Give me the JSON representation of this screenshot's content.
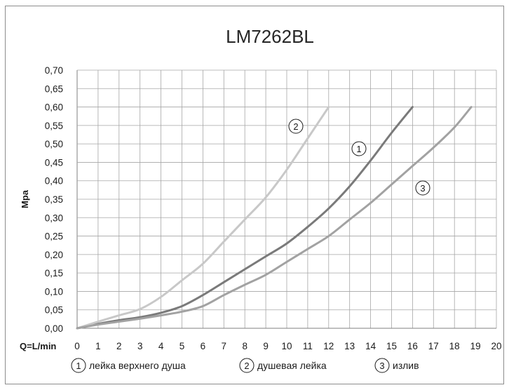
{
  "chart_data": {
    "type": "line",
    "title": "LM7262BL",
    "ylabel": "Mpa",
    "xlabel": "Q=L/min",
    "xlim": [
      0,
      20
    ],
    "ylim": [
      0,
      0.7
    ],
    "grid": true,
    "legend_position": "bottom",
    "x_ticks": [
      "0",
      "1",
      "2",
      "3",
      "4",
      "5",
      "6",
      "7",
      "8",
      "9",
      "10",
      "11",
      "12",
      "13",
      "14",
      "15",
      "16",
      "17",
      "18",
      "19",
      "20"
    ],
    "y_ticks": [
      "0,00",
      "0,05",
      "0,10",
      "0,15",
      "0,20",
      "0,25",
      "0,30",
      "0,35",
      "0,40",
      "0,45",
      "0,50",
      "0,55",
      "0,60",
      "0,65",
      "0,70"
    ],
    "series": [
      {
        "marker": "1",
        "name": "лейка верхнего душа",
        "color": "#7a7a7a",
        "x": [
          0,
          1,
          2,
          3,
          4,
          5,
          6,
          7,
          8,
          9,
          10,
          11,
          12,
          13,
          14,
          15,
          16
        ],
        "y": [
          0.0,
          0.012,
          0.022,
          0.03,
          0.042,
          0.06,
          0.09,
          0.125,
          0.16,
          0.195,
          0.23,
          0.275,
          0.325,
          0.385,
          0.455,
          0.53,
          0.6
        ]
      },
      {
        "marker": "2",
        "name": "душевая лейка",
        "color": "#c8c8c8",
        "x": [
          0,
          1,
          2,
          3,
          4,
          5,
          6,
          7,
          8,
          9,
          10,
          11,
          12
        ],
        "y": [
          0.0,
          0.018,
          0.035,
          0.052,
          0.085,
          0.13,
          0.175,
          0.235,
          0.295,
          0.355,
          0.43,
          0.515,
          0.6
        ]
      },
      {
        "marker": "3",
        "name": "излив",
        "color": "#a2a2a2",
        "x": [
          0,
          1,
          2,
          3,
          4,
          5,
          6,
          7,
          8,
          9,
          10,
          11,
          12,
          13,
          14,
          15,
          16,
          17,
          18,
          18.8
        ],
        "y": [
          0.0,
          0.01,
          0.018,
          0.026,
          0.035,
          0.045,
          0.06,
          0.09,
          0.118,
          0.145,
          0.18,
          0.215,
          0.25,
          0.295,
          0.34,
          0.39,
          0.44,
          0.49,
          0.545,
          0.6
        ]
      }
    ]
  }
}
